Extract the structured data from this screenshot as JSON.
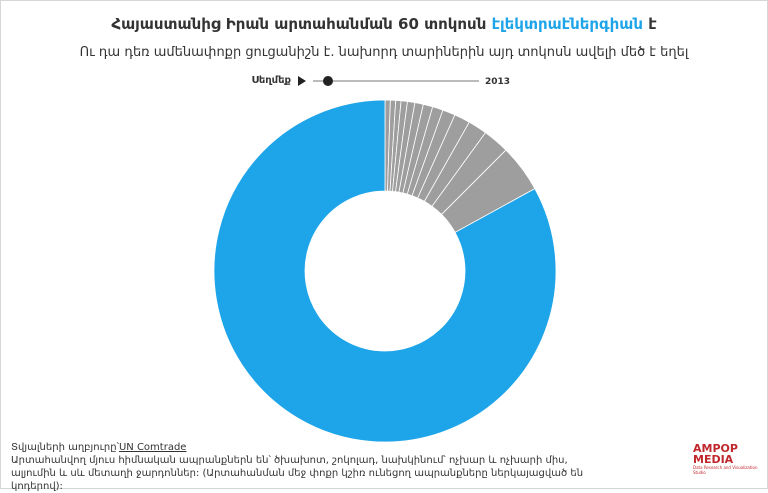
{
  "chart_data": {
    "type": "pie",
    "title": [
      "Հայաստանից Իրան արտահանման 60 տոկոսն",
      "էլեկտրաէներգիան",
      "է"
    ],
    "subtitle": "Ու դա դեռ ամենափոքր ցուցանիշն է. նախորդ տարիներին այդ տոկոսն ավելի մեծ է եղել",
    "play_label": "Սեղմեք",
    "year": "2013",
    "values": [
      0.5,
      0.5,
      0.5,
      0.6,
      0.7,
      0.8,
      0.9,
      1.0,
      1.2,
      1.5,
      1.8,
      2.5,
      4.5,
      83
    ],
    "colors": [
      "#9e9e9e",
      "#9e9e9e",
      "#9e9e9e",
      "#9e9e9e",
      "#9e9e9e",
      "#9e9e9e",
      "#9e9e9e",
      "#9e9e9e",
      "#9e9e9e",
      "#9e9e9e",
      "#9e9e9e",
      "#9e9e9e",
      "#9e9e9e",
      "#1ea4e9"
    ],
    "donut": true
  },
  "footer": {
    "source_label": "Տվյալների աղբյուրը՝",
    "source_link": "UN Comtrade",
    "note": "Արտահանվող մյուս հիմնական ապրանքներն են՝ ծխախոտ, շոկոլադ, նախկինում՝ ոչխար և ոչխարի միս, ալյումին և սև մետաղի ջարդոններ: (Արտահանման մեջ փոքր կշիռ ունեցող ապրանքները ներկայացված են կոդերով):"
  },
  "logo": {
    "brand": "AMPOP MEDIA",
    "tagline": "Data Research and Visualization Studio"
  }
}
